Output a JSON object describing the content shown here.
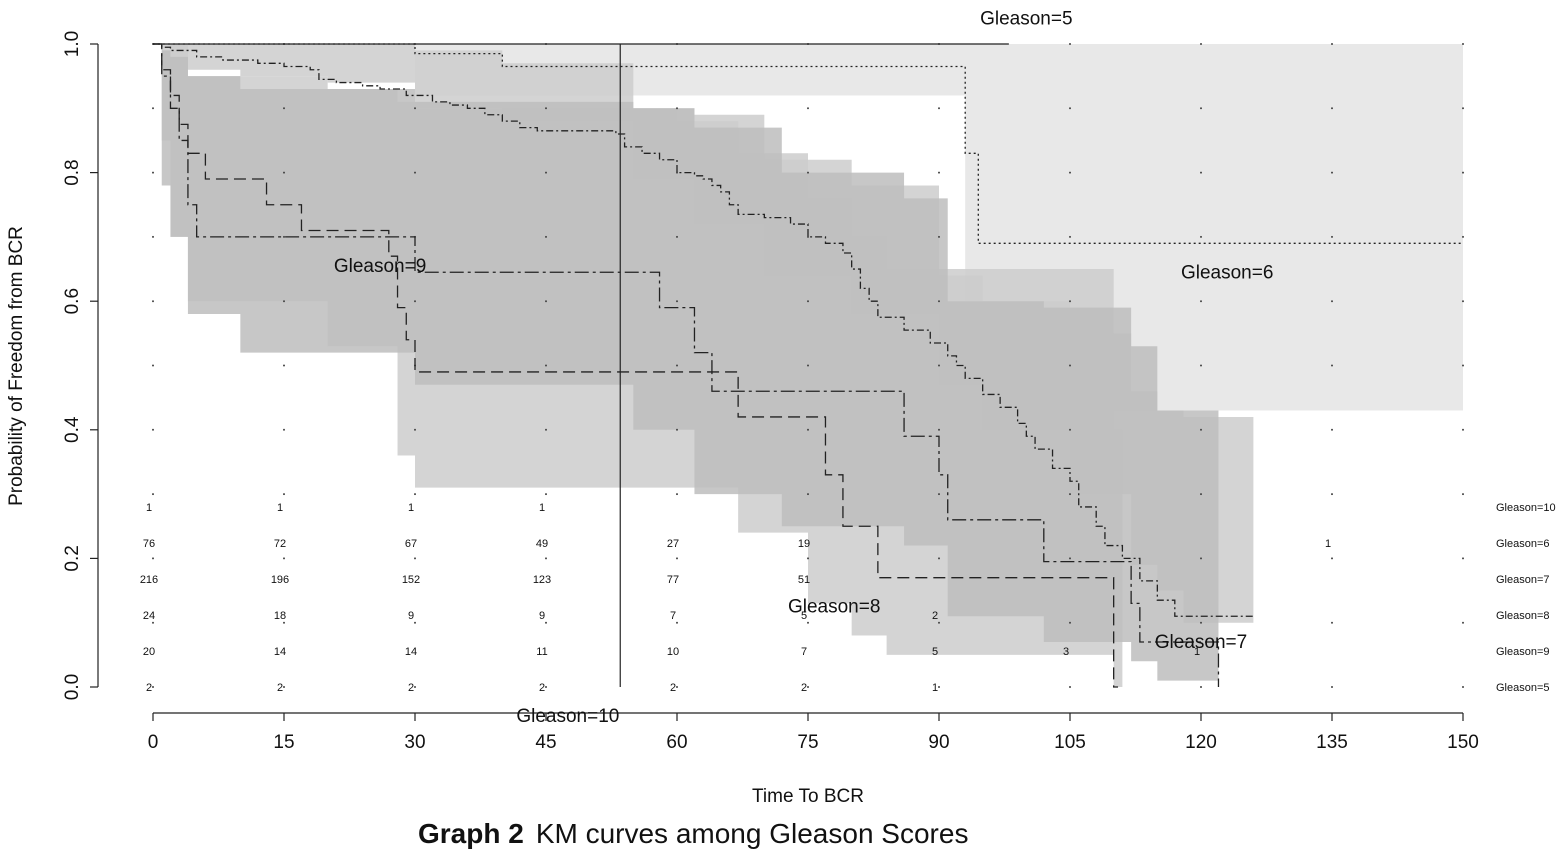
{
  "caption": {
    "label": "Graph 2",
    "text": "KM curves among Gleason Scores"
  },
  "chart_data": {
    "type": "line",
    "title": "",
    "xlabel": "Time To BCR",
    "ylabel": "Probability of Freedom from BCR",
    "xlim": [
      0,
      150
    ],
    "ylim": [
      0,
      1
    ],
    "x_ticks": [
      "0",
      "15",
      "30",
      "45",
      "60",
      "75",
      "90",
      "105",
      "120",
      "135",
      "150"
    ],
    "y_ticks": [
      "0.0",
      "0.2",
      "0.4",
      "0.6",
      "0.8",
      "1.0"
    ],
    "vertical_reference_line_x": 53.5,
    "series": [
      {
        "name": "Gleason=5",
        "style": "solid",
        "label_x": 100,
        "label_y": 1.04,
        "steps": [
          [
            0,
            1
          ],
          [
            98,
            1
          ]
        ],
        "band": []
      },
      {
        "name": "Gleason=6",
        "style": "dotted",
        "label_x": 123,
        "label_y": 0.645,
        "steps": [
          [
            0,
            1
          ],
          [
            30,
            0.985
          ],
          [
            40,
            0.965
          ],
          [
            93,
            0.83
          ],
          [
            94.5,
            0.69
          ],
          [
            150,
            0.69
          ]
        ],
        "band": [
          [
            0,
            1,
            1
          ],
          [
            30,
            1,
            0.92
          ],
          [
            93,
            1,
            0.6
          ],
          [
            95,
            1,
            0.43
          ],
          [
            150,
            1,
            0.43
          ]
        ]
      },
      {
        "name": "Gleason=7",
        "style": "dashdot",
        "label_x": 120,
        "label_y": 0.07,
        "steps": [
          [
            0,
            1
          ],
          [
            1,
            0.995
          ],
          [
            2,
            0.99
          ],
          [
            5,
            0.98
          ],
          [
            8,
            0.975
          ],
          [
            12,
            0.97
          ],
          [
            15,
            0.965
          ],
          [
            18,
            0.96
          ],
          [
            19,
            0.945
          ],
          [
            21,
            0.94
          ],
          [
            24,
            0.935
          ],
          [
            26,
            0.93
          ],
          [
            29,
            0.92
          ],
          [
            32,
            0.91
          ],
          [
            34,
            0.905
          ],
          [
            36,
            0.9
          ],
          [
            38,
            0.89
          ],
          [
            40,
            0.88
          ],
          [
            42,
            0.87
          ],
          [
            44,
            0.865
          ],
          [
            53,
            0.86
          ],
          [
            54,
            0.84
          ],
          [
            56,
            0.83
          ],
          [
            58,
            0.82
          ],
          [
            60,
            0.8
          ],
          [
            62,
            0.795
          ],
          [
            63,
            0.79
          ],
          [
            64,
            0.78
          ],
          [
            65,
            0.77
          ],
          [
            66,
            0.75
          ],
          [
            67,
            0.735
          ],
          [
            70,
            0.73
          ],
          [
            73,
            0.72
          ],
          [
            75,
            0.7
          ],
          [
            77,
            0.69
          ],
          [
            79,
            0.675
          ],
          [
            80,
            0.65
          ],
          [
            81,
            0.62
          ],
          [
            82,
            0.6
          ],
          [
            83,
            0.575
          ],
          [
            86,
            0.555
          ],
          [
            89,
            0.535
          ],
          [
            91,
            0.515
          ],
          [
            92,
            0.5
          ],
          [
            93,
            0.48
          ],
          [
            95,
            0.455
          ],
          [
            97,
            0.435
          ],
          [
            99,
            0.41
          ],
          [
            100,
            0.39
          ],
          [
            101,
            0.37
          ],
          [
            103,
            0.34
          ],
          [
            105,
            0.32
          ],
          [
            106,
            0.28
          ],
          [
            108,
            0.25
          ],
          [
            109,
            0.22
          ],
          [
            111,
            0.2
          ],
          [
            113,
            0.165
          ],
          [
            115,
            0.135
          ],
          [
            117,
            0.11
          ],
          [
            126,
            0.11
          ]
        ],
        "band": [
          [
            0,
            1,
            1
          ],
          [
            2,
            1,
            0.96
          ],
          [
            10,
            1,
            0.95
          ],
          [
            20,
            1,
            0.94
          ],
          [
            30,
            0.99,
            0.9
          ],
          [
            40,
            0.97,
            0.88
          ],
          [
            55,
            0.9,
            0.79
          ],
          [
            62,
            0.89,
            0.72
          ],
          [
            70,
            0.82,
            0.64
          ],
          [
            80,
            0.78,
            0.58
          ],
          [
            90,
            0.64,
            0.47
          ],
          [
            95,
            0.6,
            0.4
          ],
          [
            105,
            0.55,
            0.3
          ],
          [
            112,
            0.46,
            0.19
          ],
          [
            115,
            0.43,
            0.15
          ],
          [
            118,
            0.42,
            0.1
          ],
          [
            126,
            0.38,
            0.03
          ]
        ]
      },
      {
        "name": "Gleason=8",
        "style": "dashed",
        "label_x": 78,
        "label_y": 0.125,
        "steps": [
          [
            0,
            1
          ],
          [
            1,
            0.96
          ],
          [
            2,
            0.92
          ],
          [
            3,
            0.875
          ],
          [
            4,
            0.83
          ],
          [
            6,
            0.79
          ],
          [
            13,
            0.75
          ],
          [
            17,
            0.71
          ],
          [
            27,
            0.67
          ],
          [
            28,
            0.59
          ],
          [
            29,
            0.54
          ],
          [
            30,
            0.49
          ],
          [
            67,
            0.42
          ],
          [
            77,
            0.33
          ],
          [
            79,
            0.25
          ],
          [
            83,
            0.17
          ],
          [
            110,
            0
          ],
          [
            110.5,
            0
          ]
        ],
        "band": [
          [
            0,
            1,
            1
          ],
          [
            1,
            1,
            0.85
          ],
          [
            2,
            1,
            0.7
          ],
          [
            4,
            0.95,
            0.6
          ],
          [
            20,
            0.93,
            0.53
          ],
          [
            28,
            0.91,
            0.36
          ],
          [
            30,
            0.9,
            0.31
          ],
          [
            60,
            0.88,
            0.31
          ],
          [
            67,
            0.83,
            0.24
          ],
          [
            75,
            0.76,
            0.13
          ],
          [
            80,
            0.7,
            0.08
          ],
          [
            84,
            0.65,
            0.05
          ],
          [
            110,
            0.4,
            0.0
          ],
          [
            111,
            0.4,
            0.0
          ]
        ]
      },
      {
        "name": "Gleason=9",
        "style": "longdashdot",
        "label_x": 26,
        "label_y": 0.655,
        "steps": [
          [
            0,
            1
          ],
          [
            1,
            0.95
          ],
          [
            2,
            0.9
          ],
          [
            3,
            0.85
          ],
          [
            4,
            0.75
          ],
          [
            5,
            0.7
          ],
          [
            30,
            0.645
          ],
          [
            58,
            0.59
          ],
          [
            62,
            0.52
          ],
          [
            64,
            0.46
          ],
          [
            86,
            0.39
          ],
          [
            90,
            0.33
          ],
          [
            91,
            0.26
          ],
          [
            102,
            0.195
          ],
          [
            112,
            0.13
          ],
          [
            113,
            0.07
          ],
          [
            122,
            0
          ]
        ],
        "band": [
          [
            0,
            1,
            1
          ],
          [
            1,
            0.99,
            0.78
          ],
          [
            2,
            0.98,
            0.7
          ],
          [
            4,
            0.95,
            0.58
          ],
          [
            10,
            0.93,
            0.52
          ],
          [
            30,
            0.91,
            0.47
          ],
          [
            55,
            0.9,
            0.4
          ],
          [
            62,
            0.87,
            0.3
          ],
          [
            72,
            0.8,
            0.25
          ],
          [
            86,
            0.76,
            0.22
          ],
          [
            91,
            0.6,
            0.11
          ],
          [
            102,
            0.59,
            0.07
          ],
          [
            112,
            0.53,
            0.04
          ],
          [
            115,
            0.43,
            0.01
          ],
          [
            122,
            0.43,
            0.01
          ]
        ]
      },
      {
        "name": "Gleason=10",
        "style": "solid",
        "label_x": 47.5,
        "label_y": -0.045,
        "steps": [],
        "band": []
      }
    ],
    "risk_table": {
      "times": [
        0,
        15,
        30,
        45,
        60,
        75,
        90,
        105,
        120,
        135
      ],
      "rows": [
        {
          "name": "Gleason=10",
          "counts": [
            "1",
            "1",
            "1",
            "1",
            "",
            "",
            "",
            "",
            "",
            ""
          ]
        },
        {
          "name": "Gleason=6",
          "counts": [
            "76",
            "72",
            "67",
            "49",
            "27",
            "19",
            "",
            "",
            "",
            "1"
          ]
        },
        {
          "name": "Gleason=7",
          "counts": [
            "216",
            "196",
            "152",
            "123",
            "77",
            "51",
            "",
            "",
            "",
            ""
          ]
        },
        {
          "name": "Gleason=8",
          "counts": [
            "24",
            "18",
            "9",
            "9",
            "7",
            "5",
            "2",
            "",
            "",
            ""
          ]
        },
        {
          "name": "Gleason=9",
          "counts": [
            "20",
            "14",
            "14",
            "11",
            "10",
            "7",
            "5",
            "3",
            "1",
            ""
          ]
        },
        {
          "name": "Gleason=5",
          "counts": [
            "2",
            "2",
            "2",
            "2",
            "2",
            "2",
            "1",
            "",
            "",
            ""
          ]
        }
      ]
    },
    "colors": {
      "band_light": "#e4e4e4",
      "band_mid": "#cdcdcd",
      "band_dark": "#bdbdbd",
      "line": "#222222"
    }
  }
}
